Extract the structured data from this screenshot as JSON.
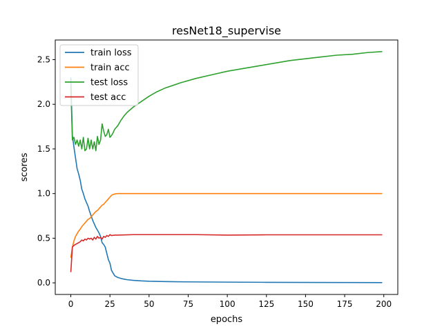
{
  "chart_data": {
    "type": "line",
    "title": "resNet18_supervise",
    "xlabel": "epochs",
    "ylabel": "scores",
    "xlim": [
      -9.95,
      208.95
    ],
    "ylim": [
      -0.13,
      2.72
    ],
    "xticks": [
      0,
      25,
      50,
      75,
      100,
      125,
      150,
      175,
      200
    ],
    "yticks": [
      0.0,
      0.5,
      1.0,
      1.5,
      2.0,
      2.5
    ],
    "xtick_labels": [
      "0",
      "25",
      "50",
      "75",
      "100",
      "125",
      "150",
      "175",
      "200"
    ],
    "ytick_labels": [
      "0.0",
      "0.5",
      "1.0",
      "1.5",
      "2.0",
      "2.5"
    ],
    "grid": false,
    "legend_position": "top-left",
    "series": [
      {
        "name": "train loss",
        "color": "#1f77b4",
        "points": [
          [
            0,
            2.3
          ],
          [
            1,
            1.65
          ],
          [
            2,
            1.52
          ],
          [
            3,
            1.4
          ],
          [
            4,
            1.28
          ],
          [
            5,
            1.22
          ],
          [
            6,
            1.15
          ],
          [
            7,
            1.05
          ],
          [
            8,
            1.0
          ],
          [
            9,
            0.94
          ],
          [
            10,
            0.9
          ],
          [
            11,
            0.86
          ],
          [
            12,
            0.8
          ],
          [
            13,
            0.75
          ],
          [
            14,
            0.7
          ],
          [
            15,
            0.66
          ],
          [
            16,
            0.62
          ],
          [
            17,
            0.59
          ],
          [
            18,
            0.56
          ],
          [
            19,
            0.52
          ],
          [
            20,
            0.45
          ],
          [
            21,
            0.43
          ],
          [
            22,
            0.4
          ],
          [
            23,
            0.33
          ],
          [
            24,
            0.26
          ],
          [
            25,
            0.22
          ],
          [
            26,
            0.14
          ],
          [
            27,
            0.11
          ],
          [
            28,
            0.08
          ],
          [
            30,
            0.06
          ],
          [
            33,
            0.045
          ],
          [
            36,
            0.035
          ],
          [
            40,
            0.028
          ],
          [
            45,
            0.022
          ],
          [
            50,
            0.018
          ],
          [
            60,
            0.014
          ],
          [
            75,
            0.011
          ],
          [
            100,
            0.008
          ],
          [
            125,
            0.006
          ],
          [
            150,
            0.005
          ],
          [
            175,
            0.004
          ],
          [
            199,
            0.003
          ]
        ]
      },
      {
        "name": "train acc",
        "color": "#ff7f0e",
        "points": [
          [
            0,
            0.28
          ],
          [
            1,
            0.4
          ],
          [
            2,
            0.47
          ],
          [
            3,
            0.52
          ],
          [
            4,
            0.55
          ],
          [
            5,
            0.58
          ],
          [
            6,
            0.6
          ],
          [
            7,
            0.63
          ],
          [
            8,
            0.65
          ],
          [
            9,
            0.67
          ],
          [
            10,
            0.69
          ],
          [
            11,
            0.71
          ],
          [
            12,
            0.72
          ],
          [
            13,
            0.74
          ],
          [
            14,
            0.76
          ],
          [
            15,
            0.78
          ],
          [
            16,
            0.8
          ],
          [
            17,
            0.81
          ],
          [
            18,
            0.83
          ],
          [
            19,
            0.85
          ],
          [
            20,
            0.87
          ],
          [
            21,
            0.88
          ],
          [
            22,
            0.9
          ],
          [
            23,
            0.92
          ],
          [
            24,
            0.94
          ],
          [
            25,
            0.96
          ],
          [
            26,
            0.98
          ],
          [
            27,
            0.99
          ],
          [
            28,
            0.995
          ],
          [
            30,
            1.0
          ],
          [
            40,
            1.0
          ],
          [
            60,
            1.0
          ],
          [
            100,
            1.0
          ],
          [
            150,
            1.0
          ],
          [
            199,
            1.0
          ]
        ]
      },
      {
        "name": "test loss",
        "color": "#2ca02c",
        "points": [
          [
            0,
            2.2
          ],
          [
            1,
            1.6
          ],
          [
            2,
            1.63
          ],
          [
            3,
            1.55
          ],
          [
            4,
            1.6
          ],
          [
            5,
            1.53
          ],
          [
            6,
            1.6
          ],
          [
            7,
            1.5
          ],
          [
            8,
            1.63
          ],
          [
            9,
            1.48
          ],
          [
            10,
            1.5
          ],
          [
            11,
            1.62
          ],
          [
            12,
            1.5
          ],
          [
            13,
            1.6
          ],
          [
            14,
            1.5
          ],
          [
            15,
            1.58
          ],
          [
            16,
            1.48
          ],
          [
            17,
            1.64
          ],
          [
            18,
            1.55
          ],
          [
            19,
            1.6
          ],
          [
            20,
            1.78
          ],
          [
            21,
            1.7
          ],
          [
            22,
            1.64
          ],
          [
            23,
            1.66
          ],
          [
            24,
            1.72
          ],
          [
            25,
            1.63
          ],
          [
            26,
            1.65
          ],
          [
            27,
            1.68
          ],
          [
            28,
            1.72
          ],
          [
            30,
            1.76
          ],
          [
            32,
            1.82
          ],
          [
            34,
            1.87
          ],
          [
            36,
            1.91
          ],
          [
            38,
            1.94
          ],
          [
            40,
            1.97
          ],
          [
            45,
            2.03
          ],
          [
            50,
            2.09
          ],
          [
            55,
            2.14
          ],
          [
            60,
            2.18
          ],
          [
            70,
            2.24
          ],
          [
            80,
            2.29
          ],
          [
            90,
            2.33
          ],
          [
            100,
            2.37
          ],
          [
            110,
            2.4
          ],
          [
            120,
            2.43
          ],
          [
            130,
            2.46
          ],
          [
            140,
            2.49
          ],
          [
            150,
            2.51
          ],
          [
            160,
            2.53
          ],
          [
            170,
            2.55
          ],
          [
            180,
            2.56
          ],
          [
            190,
            2.58
          ],
          [
            199,
            2.59
          ]
        ]
      },
      {
        "name": "test acc",
        "color": "#d62728",
        "points": [
          [
            0,
            0.12
          ],
          [
            1,
            0.4
          ],
          [
            2,
            0.42
          ],
          [
            3,
            0.43
          ],
          [
            4,
            0.44
          ],
          [
            5,
            0.45
          ],
          [
            6,
            0.46
          ],
          [
            7,
            0.48
          ],
          [
            8,
            0.47
          ],
          [
            9,
            0.49
          ],
          [
            10,
            0.48
          ],
          [
            11,
            0.5
          ],
          [
            12,
            0.49
          ],
          [
            13,
            0.5
          ],
          [
            14,
            0.48
          ],
          [
            15,
            0.51
          ],
          [
            16,
            0.49
          ],
          [
            17,
            0.52
          ],
          [
            18,
            0.5
          ],
          [
            19,
            0.51
          ],
          [
            20,
            0.49
          ],
          [
            21,
            0.52
          ],
          [
            22,
            0.51
          ],
          [
            23,
            0.53
          ],
          [
            24,
            0.52
          ],
          [
            25,
            0.54
          ],
          [
            26,
            0.53
          ],
          [
            28,
            0.535
          ],
          [
            30,
            0.535
          ],
          [
            40,
            0.54
          ],
          [
            60,
            0.54
          ],
          [
            80,
            0.54
          ],
          [
            100,
            0.535
          ],
          [
            125,
            0.538
          ],
          [
            150,
            0.538
          ],
          [
            175,
            0.538
          ],
          [
            199,
            0.538
          ]
        ]
      }
    ]
  }
}
